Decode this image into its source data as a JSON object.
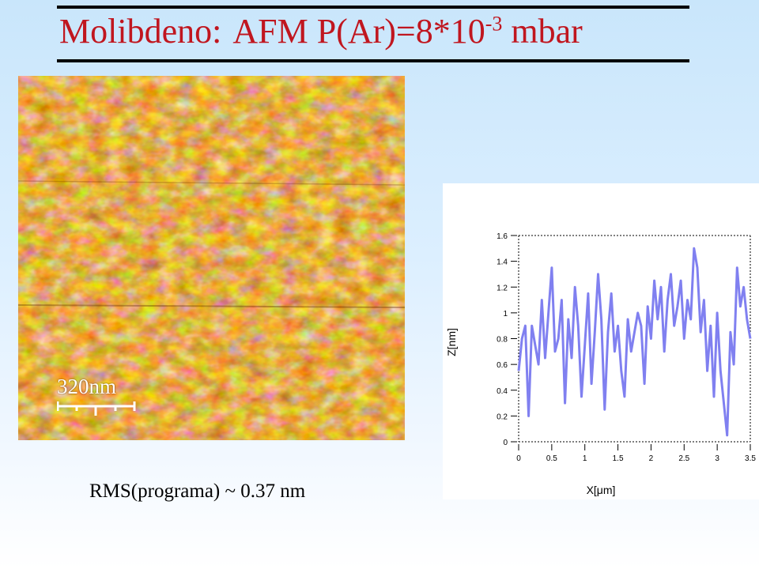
{
  "slide": {
    "title_main": "Molibdeno:",
    "title_rest_prefix": "AFM P(Ar)=8*10",
    "title_exponent": "-3",
    "title_suffix": " mbar",
    "rms_text": "RMS(programa) ~ 0.37 nm"
  },
  "afm_image": {
    "scalebar_label": "320nm",
    "colors": {
      "dark": "#7a2f03",
      "mid": "#c1600d",
      "light": "#f0a84a",
      "highlight": "#fff0c8"
    }
  },
  "chart_data": {
    "type": "line",
    "xlabel": "X[μm]",
    "ylabel": "Z[nm]",
    "xlim": [
      0,
      3.5
    ],
    "ylim": [
      0,
      1.6
    ],
    "xticks": [
      "0",
      "0.5",
      "1",
      "1.5",
      "2",
      "2.5",
      "3",
      "3.5"
    ],
    "yticks": [
      "0",
      "0.2",
      "0.4",
      "0.6",
      "0.8",
      "1",
      "1.2",
      "1.4",
      "1.6"
    ],
    "line_color": "#8080f0",
    "series": [
      {
        "x": [
          0,
          0.05,
          0.1,
          0.15,
          0.2,
          0.25,
          0.3,
          0.35,
          0.4,
          0.45,
          0.5,
          0.55,
          0.6,
          0.65,
          0.7,
          0.75,
          0.8,
          0.85,
          0.9,
          0.95,
          1.0,
          1.05,
          1.1,
          1.15,
          1.2,
          1.25,
          1.3,
          1.35,
          1.4,
          1.45,
          1.5,
          1.55,
          1.6,
          1.65,
          1.7,
          1.75,
          1.8,
          1.85,
          1.9,
          1.95,
          2.0,
          2.05,
          2.1,
          2.15,
          2.2,
          2.25,
          2.3,
          2.35,
          2.4,
          2.45,
          2.5,
          2.55,
          2.6,
          2.65,
          2.7,
          2.75,
          2.8,
          2.85,
          2.9,
          2.95,
          3.0,
          3.05,
          3.1,
          3.15,
          3.2,
          3.25,
          3.3,
          3.35,
          3.4,
          3.45,
          3.5
        ],
        "values": [
          0.55,
          0.8,
          0.9,
          0.2,
          0.9,
          0.75,
          0.6,
          1.1,
          0.65,
          1.0,
          1.35,
          0.7,
          0.8,
          1.1,
          0.3,
          0.95,
          0.65,
          1.2,
          0.9,
          0.35,
          0.75,
          1.15,
          0.45,
          0.85,
          1.3,
          0.95,
          0.25,
          0.85,
          1.15,
          0.7,
          0.9,
          0.55,
          0.35,
          0.95,
          0.7,
          0.85,
          1.0,
          0.9,
          0.45,
          1.05,
          0.8,
          1.25,
          0.95,
          1.2,
          0.7,
          1.1,
          1.3,
          0.9,
          1.05,
          1.25,
          0.8,
          1.1,
          0.95,
          1.5,
          1.35,
          0.85,
          1.1,
          0.55,
          0.9,
          0.35,
          1.0,
          0.55,
          0.3,
          0.05,
          0.85,
          0.6,
          1.35,
          1.05,
          1.2,
          0.95,
          0.8
        ]
      }
    ]
  }
}
